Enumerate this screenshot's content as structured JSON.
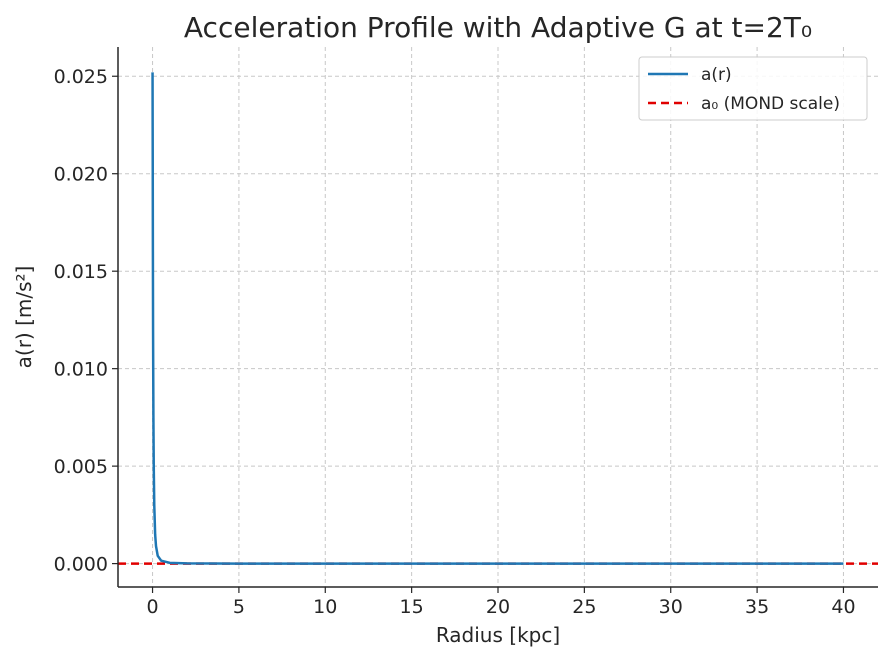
{
  "chart_data": {
    "type": "line",
    "title": "Acceleration Profile with Adaptive G at t=2T₀",
    "xlabel": "Radius [kpc]",
    "ylabel": "a(r) [m/s²]",
    "xlim": [
      -2,
      42
    ],
    "ylim": [
      -0.0012,
      0.0265
    ],
    "x_ticks": [
      0,
      5,
      10,
      15,
      20,
      25,
      30,
      35,
      40
    ],
    "x_tick_labels": [
      "0",
      "5",
      "10",
      "15",
      "20",
      "25",
      "30",
      "35",
      "40"
    ],
    "y_ticks": [
      0,
      0.005,
      0.01,
      0.015,
      0.02,
      0.025
    ],
    "y_tick_labels": [
      "0.000",
      "0.005",
      "0.010",
      "0.015",
      "0.020",
      "0.025"
    ],
    "grid": true,
    "legend_position": "top-right",
    "series": [
      {
        "name": "a(r)",
        "color": "#1f77b4",
        "style": "solid",
        "x": [
          0.0,
          0.01,
          0.02,
          0.03,
          0.05,
          0.07,
          0.1,
          0.15,
          0.2,
          0.3,
          0.5,
          1.0,
          2.0,
          5.0,
          10.0,
          20.0,
          30.0,
          40.0
        ],
        "y": [
          0.0252,
          0.021,
          0.016,
          0.012,
          0.0075,
          0.005,
          0.003,
          0.0015,
          0.0009,
          0.0004,
          0.00015,
          4e-05,
          1e-05,
          2e-06,
          5e-07,
          1e-07,
          5e-08,
          3e-08
        ]
      },
      {
        "name": "a₀ (MOND scale)",
        "color": "#e00000",
        "style": "dashed",
        "type": "hline",
        "y": 0.0
      }
    ]
  }
}
